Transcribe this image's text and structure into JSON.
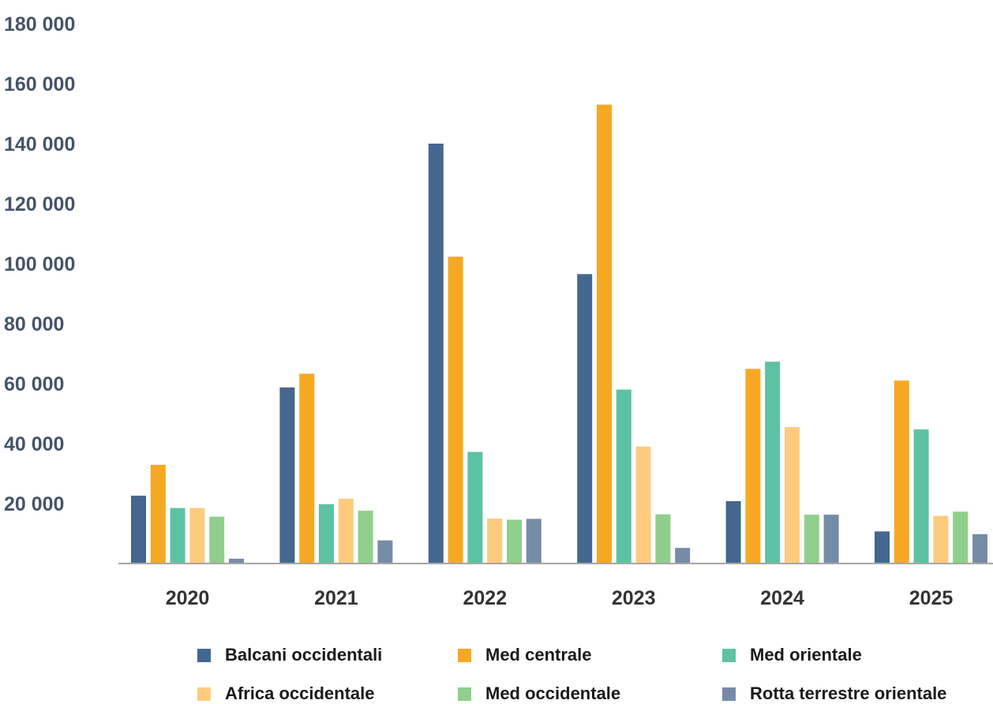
{
  "chart_data": {
    "type": "bar",
    "categories": [
      "2020",
      "2021",
      "2022",
      "2023",
      "2024",
      "2025"
    ],
    "series": [
      {
        "name": "Balcani occidentali",
        "color": "#44678F",
        "values": [
          22600,
          58700,
          140000,
          96500,
          20800,
          10700
        ]
      },
      {
        "name": "Med centrale",
        "color": "#F7A823",
        "values": [
          32900,
          63300,
          102300,
          153000,
          64900,
          61000
        ]
      },
      {
        "name": "Med orientale",
        "color": "#5CC2A3",
        "values": [
          18500,
          19800,
          37200,
          58000,
          67300,
          44700
        ]
      },
      {
        "name": "Africa occidentale",
        "color": "#FDCB7E",
        "values": [
          18500,
          21600,
          15000,
          39000,
          45500,
          15900
        ]
      },
      {
        "name": "Med occidentale",
        "color": "#8FCF8C",
        "values": [
          15600,
          17600,
          14600,
          16400,
          16300,
          17300
        ]
      },
      {
        "name": "Rotta terrestre orientale",
        "color": "#768CA6",
        "values": [
          1600,
          7700,
          14900,
          5200,
          16300,
          9800
        ]
      }
    ],
    "ylim": [
      0,
      180000
    ],
    "yticks": [
      20000,
      40000,
      60000,
      80000,
      100000,
      120000,
      140000,
      160000,
      180000
    ],
    "ytick_labels": [
      "20 000",
      "40 000",
      "60 000",
      "80 000",
      "100 000",
      "120 000",
      "140 000",
      "160 000",
      "180 000"
    ],
    "grid": false,
    "legend_position": "bottom"
  }
}
